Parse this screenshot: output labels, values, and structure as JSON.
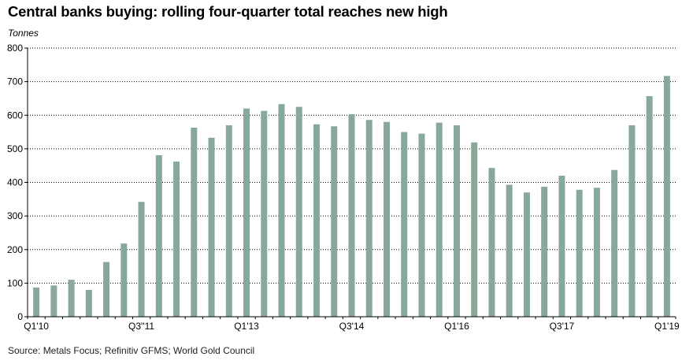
{
  "title": "Central banks buying: rolling four-quarter total reaches new high",
  "unit_label": "Tonnes",
  "source": "Source: Metals Focus; Refinitiv GFMS; World Gold Council",
  "colors": {
    "bar": "#88a99a",
    "grid": "#000000"
  },
  "chart_data": {
    "type": "bar",
    "ylabel": "Tonnes",
    "ylim": [
      0,
      800
    ],
    "yticks": [
      0,
      100,
      200,
      300,
      400,
      500,
      600,
      700,
      800
    ],
    "grid": "horizontal-dotted",
    "categories": [
      "Q1'10",
      "Q2'10",
      "Q3'10",
      "Q4'10",
      "Q1'11",
      "Q2'11",
      "Q3'11",
      "Q4'11",
      "Q1'12",
      "Q2'12",
      "Q3'12",
      "Q4'12",
      "Q1'13",
      "Q2'13",
      "Q3'13",
      "Q4'13",
      "Q1'14",
      "Q2'14",
      "Q3'14",
      "Q4'14",
      "Q1'15",
      "Q2'15",
      "Q3'15",
      "Q4'15",
      "Q1'16",
      "Q2'16",
      "Q3'16",
      "Q4'16",
      "Q1'17",
      "Q2'17",
      "Q3'17",
      "Q4'17",
      "Q1'18",
      "Q2'18",
      "Q3'18",
      "Q4'18",
      "Q1'19"
    ],
    "xtick_labels": [
      {
        "index": 0,
        "label": "Q1'10"
      },
      {
        "index": 6,
        "label": "Q3''11"
      },
      {
        "index": 12,
        "label": "Q1'13"
      },
      {
        "index": 18,
        "label": "Q3'14"
      },
      {
        "index": 24,
        "label": "Q1'16"
      },
      {
        "index": 30,
        "label": "Q3'17"
      },
      {
        "index": 36,
        "label": "Q1'19"
      }
    ],
    "values": [
      87,
      93,
      110,
      80,
      163,
      218,
      342,
      481,
      462,
      563,
      533,
      570,
      620,
      613,
      633,
      625,
      573,
      567,
      603,
      586,
      580,
      550,
      545,
      578,
      570,
      519,
      443,
      393,
      370,
      387,
      420,
      378,
      384,
      437,
      570,
      657,
      717
    ]
  }
}
